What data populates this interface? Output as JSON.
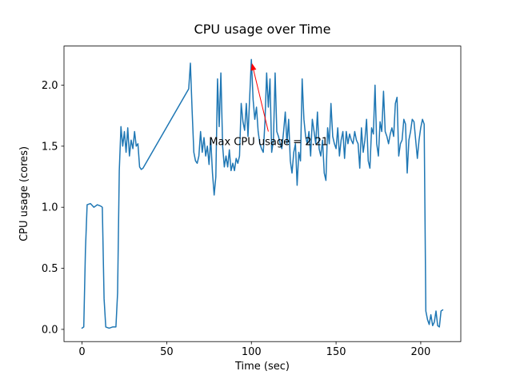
{
  "figure": {
    "background": "#ffffff"
  },
  "chart_data": {
    "type": "line",
    "title": "CPU usage over Time",
    "xlabel": "Time (sec)",
    "ylabel": "CPU usage (cores)",
    "xlim": [
      -10.65,
      223.65
    ],
    "ylim": [
      -0.1,
      2.32
    ],
    "xticks": [
      0,
      50,
      100,
      150,
      200
    ],
    "xtick_labels": [
      "0",
      "50",
      "100",
      "150",
      "200"
    ],
    "yticks": [
      0.0,
      0.5,
      1.0,
      1.5,
      2.0
    ],
    "ytick_labels": [
      "0.0",
      "0.5",
      "1.0",
      "1.5",
      "2.0"
    ],
    "line_color": "#1f77b4",
    "grid": false,
    "legend": "none",
    "annotation": {
      "text": "Max CPU usage = 2.21",
      "color": "#ff0000",
      "max_value": 2.21,
      "text_pos": [
        75,
        1.51
      ],
      "arrow_tail": [
        110,
        1.62
      ],
      "arrow_head": [
        100.3,
        2.18
      ]
    },
    "x": [
      0,
      1,
      2,
      3,
      5,
      7,
      9,
      11,
      12,
      13,
      14,
      16,
      18,
      20,
      21,
      22,
      23,
      24,
      25,
      26,
      27,
      28,
      29,
      30,
      31,
      32,
      33,
      34,
      35,
      36,
      63,
      64,
      65,
      66,
      67,
      68,
      69,
      70,
      71,
      72,
      73,
      74,
      75,
      76,
      77,
      78,
      79,
      80,
      81,
      82,
      83,
      84,
      85,
      86,
      87,
      88,
      89,
      90,
      91,
      92,
      93,
      94,
      95,
      96,
      97,
      98,
      99,
      100,
      101,
      102,
      103,
      104,
      105,
      106,
      107,
      108,
      109,
      110,
      111,
      112,
      113,
      114,
      115,
      116,
      117,
      118,
      119,
      120,
      121,
      122,
      123,
      124,
      125,
      126,
      127,
      128,
      129,
      130,
      131,
      132,
      133,
      134,
      135,
      136,
      137,
      138,
      139,
      140,
      141,
      142,
      143,
      144,
      145,
      146,
      147,
      148,
      149,
      150,
      151,
      152,
      153,
      154,
      155,
      156,
      157,
      158,
      159,
      160,
      161,
      162,
      163,
      164,
      165,
      166,
      167,
      168,
      169,
      170,
      171,
      172,
      173,
      174,
      175,
      176,
      177,
      178,
      179,
      180,
      181,
      182,
      183,
      184,
      185,
      186,
      187,
      188,
      189,
      190,
      191,
      192,
      193,
      194,
      195,
      196,
      197,
      198,
      199,
      200,
      201,
      202,
      203,
      204,
      205,
      206,
      207,
      208,
      209,
      210,
      211,
      212,
      213
    ],
    "y": [
      0.01,
      0.02,
      0.65,
      1.02,
      1.03,
      1.0,
      1.02,
      1.01,
      1.0,
      0.25,
      0.02,
      0.01,
      0.02,
      0.02,
      0.3,
      1.3,
      1.66,
      1.5,
      1.62,
      1.45,
      1.65,
      1.42,
      1.55,
      1.48,
      1.62,
      1.5,
      1.52,
      1.33,
      1.31,
      1.32,
      1.97,
      2.18,
      1.8,
      1.45,
      1.38,
      1.36,
      1.42,
      1.62,
      1.45,
      1.57,
      1.42,
      1.5,
      1.35,
      1.56,
      1.28,
      1.1,
      1.25,
      2.05,
      1.66,
      2.1,
      1.5,
      1.33,
      1.42,
      1.33,
      1.47,
      1.3,
      1.36,
      1.3,
      1.4,
      1.36,
      1.42,
      1.85,
      1.7,
      1.63,
      1.85,
      1.58,
      1.9,
      2.21,
      1.88,
      1.72,
      1.82,
      1.62,
      1.52,
      1.48,
      1.45,
      1.7,
      2.1,
      1.82,
      2.05,
      1.45,
      1.55,
      2.1,
      1.62,
      1.58,
      1.52,
      1.48,
      1.62,
      1.78,
      1.52,
      1.72,
      1.38,
      1.28,
      1.45,
      1.52,
      1.18,
      1.45,
      1.38,
      2.05,
      1.72,
      1.58,
      1.52,
      1.62,
      1.42,
      1.72,
      1.62,
      1.52,
      1.78,
      1.48,
      1.42,
      1.55,
      1.28,
      1.22,
      1.65,
      1.52,
      1.85,
      1.58,
      1.52,
      1.48,
      1.65,
      1.42,
      1.55,
      1.62,
      1.4,
      1.62,
      1.52,
      1.6,
      1.55,
      1.52,
      1.62,
      1.55,
      1.52,
      1.32,
      1.65,
      1.45,
      1.55,
      1.72,
      1.38,
      1.32,
      1.65,
      1.6,
      2.0,
      1.52,
      1.42,
      1.7,
      1.62,
      1.95,
      1.62,
      1.58,
      1.52,
      1.6,
      1.65,
      1.58,
      1.85,
      1.9,
      1.42,
      1.52,
      1.55,
      1.72,
      1.68,
      1.28,
      1.55,
      1.62,
      1.72,
      1.7,
      1.55,
      1.4,
      1.55,
      1.65,
      1.72,
      1.68,
      0.15,
      0.08,
      0.04,
      0.12,
      0.03,
      0.06,
      0.15,
      0.03,
      0.02,
      0.15,
      0.16
    ]
  }
}
